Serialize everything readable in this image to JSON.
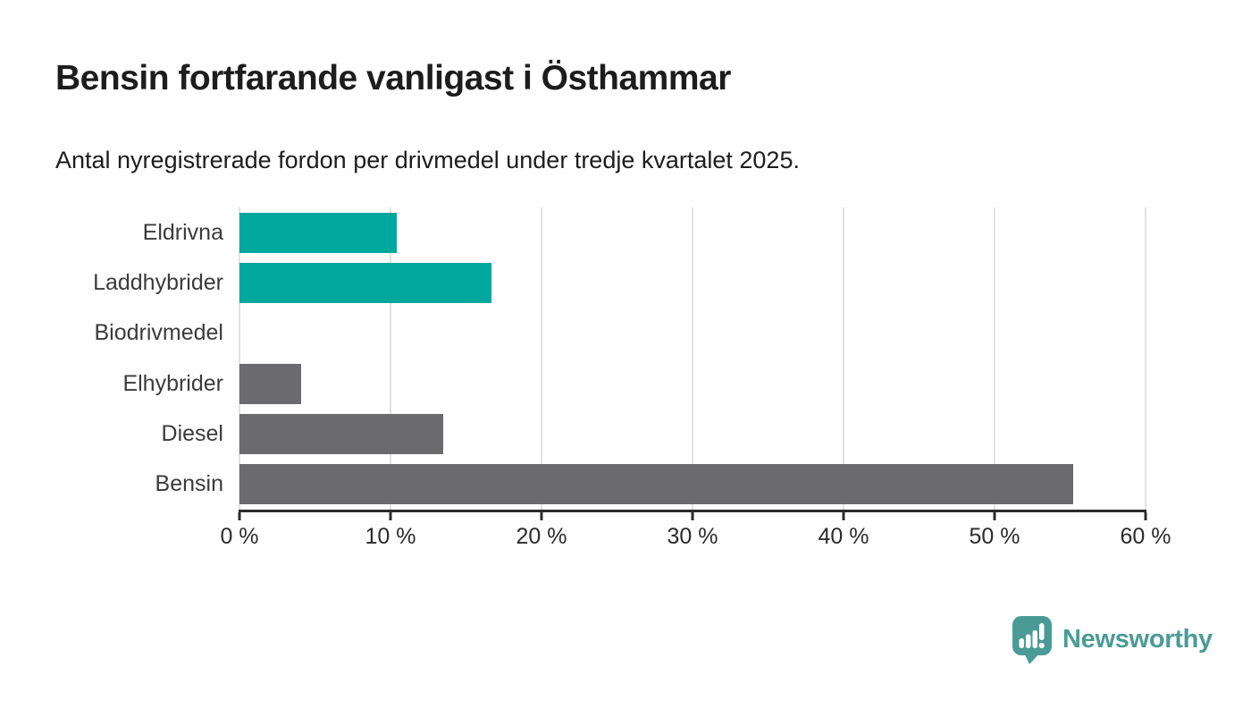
{
  "chart_data": {
    "type": "bar",
    "orientation": "horizontal",
    "title": "Bensin fortfarande vanligast i Östhammar",
    "subtitle": "Antal nyregistrerade fordon per drivmedel under tredje kvartalet 2025.",
    "categories": [
      "Eldrivna",
      "Laddhybrider",
      "Biodrivmedel",
      "Elhybrider",
      "Diesel",
      "Bensin"
    ],
    "values": [
      10.4,
      16.7,
      0,
      4.1,
      13.5,
      55.2
    ],
    "bar_colors": [
      "#00a79c",
      "#00a79c",
      "#6b6b6e",
      "#6b6b6e",
      "#6b6b6e",
      "#6b6b6e"
    ],
    "xlim": [
      0,
      60
    ],
    "x_ticks": [
      0,
      10,
      20,
      30,
      40,
      50,
      60
    ],
    "x_tick_labels": [
      "0 %",
      "10 %",
      "20 %",
      "30 %",
      "40 %",
      "50 %",
      "60 %"
    ],
    "xlabel": "",
    "ylabel": "",
    "grid": "vertical-gridlines-on",
    "legend": "none"
  },
  "colors": {
    "series_highlight": "#00a79c",
    "series_default": "#6b6b6e",
    "brand": "#4a9b96",
    "gridline": "#e2e2e2",
    "axis": "#2b2b2b",
    "title_text": "#1d1d1d",
    "label_text": "#3b3b3b"
  },
  "footer": {
    "brand_name": "Newsworthy",
    "logo_icon": "bar-chart-speech-bubble-icon"
  }
}
